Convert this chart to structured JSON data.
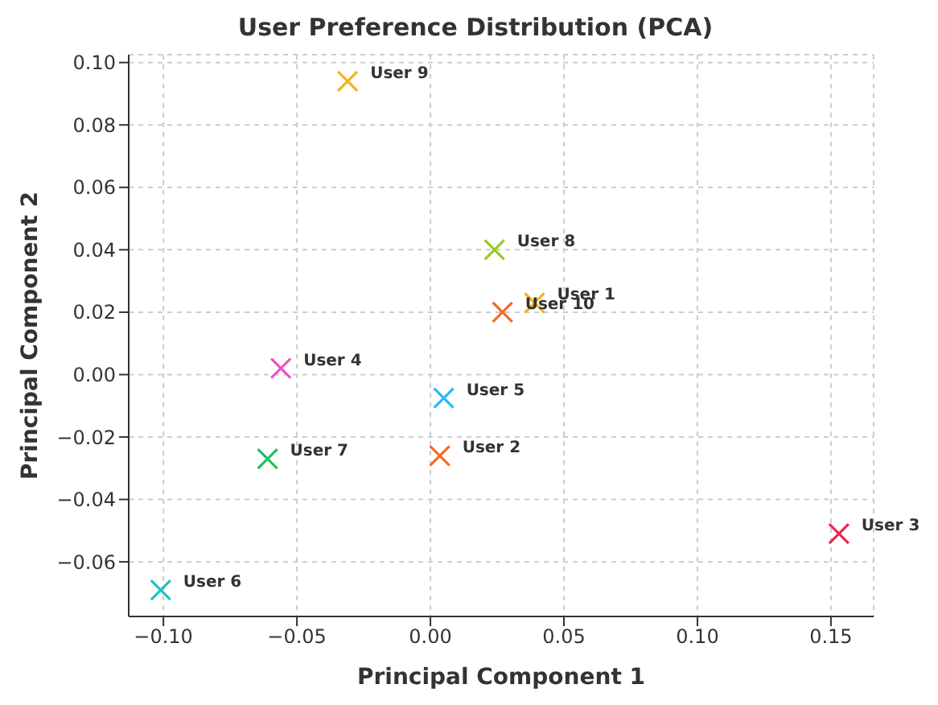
{
  "chart_data": {
    "type": "scatter",
    "title": "User Preference Distribution (PCA)",
    "xlabel": "Principal Component 1",
    "ylabel": "Principal Component 2",
    "xlim": [
      -0.113,
      0.166
    ],
    "ylim": [
      -0.0775,
      0.1025
    ],
    "xticks": [
      {
        "value": -0.1,
        "label": "−0.10"
      },
      {
        "value": -0.05,
        "label": "−0.05"
      },
      {
        "value": 0,
        "label": "0.00"
      },
      {
        "value": 0.05,
        "label": "0.05"
      },
      {
        "value": 0.1,
        "label": "0.10"
      },
      {
        "value": 0.15,
        "label": "0.15"
      }
    ],
    "yticks": [
      {
        "value": -0.06,
        "label": "−0.06"
      },
      {
        "value": -0.04,
        "label": "−0.04"
      },
      {
        "value": -0.02,
        "label": "−0.02"
      },
      {
        "value": 0,
        "label": "0.00"
      },
      {
        "value": 0.02,
        "label": "0.02"
      },
      {
        "value": 0.04,
        "label": "0.04"
      },
      {
        "value": 0.06,
        "label": "0.06"
      },
      {
        "value": 0.08,
        "label": "0.08"
      },
      {
        "value": 0.1,
        "label": "0.10"
      }
    ],
    "grid": true,
    "legend": false,
    "marker": "cross",
    "series": [
      {
        "name": "User 1",
        "color": "#f5b31a",
        "x": [
          0.039
        ],
        "values": [
          0.023
        ]
      },
      {
        "name": "User 2",
        "color": "#f26b21",
        "x": [
          0.0035
        ],
        "values": [
          -0.026
        ]
      },
      {
        "name": "User 3",
        "color": "#e8294b",
        "x": [
          0.153
        ],
        "values": [
          -0.051
        ]
      },
      {
        "name": "User 4",
        "color": "#f052c0",
        "x": [
          -0.056
        ],
        "values": [
          0.002
        ]
      },
      {
        "name": "User 5",
        "color": "#29b6f6",
        "x": [
          0.005
        ],
        "values": [
          -0.0075
        ]
      },
      {
        "name": "User 6",
        "color": "#1fc4c4",
        "x": [
          -0.101
        ],
        "values": [
          -0.069
        ]
      },
      {
        "name": "User 7",
        "color": "#20c065",
        "x": [
          -0.061
        ],
        "values": [
          -0.027
        ]
      },
      {
        "name": "User 8",
        "color": "#9bc72a",
        "x": [
          0.024
        ],
        "values": [
          0.04
        ]
      },
      {
        "name": "User 9",
        "color": "#f5b31a",
        "x": [
          -0.031
        ],
        "values": [
          0.094
        ]
      },
      {
        "name": "User 10",
        "color": "#f26b21",
        "x": [
          0.027
        ],
        "values": [
          0.02
        ]
      }
    ]
  }
}
